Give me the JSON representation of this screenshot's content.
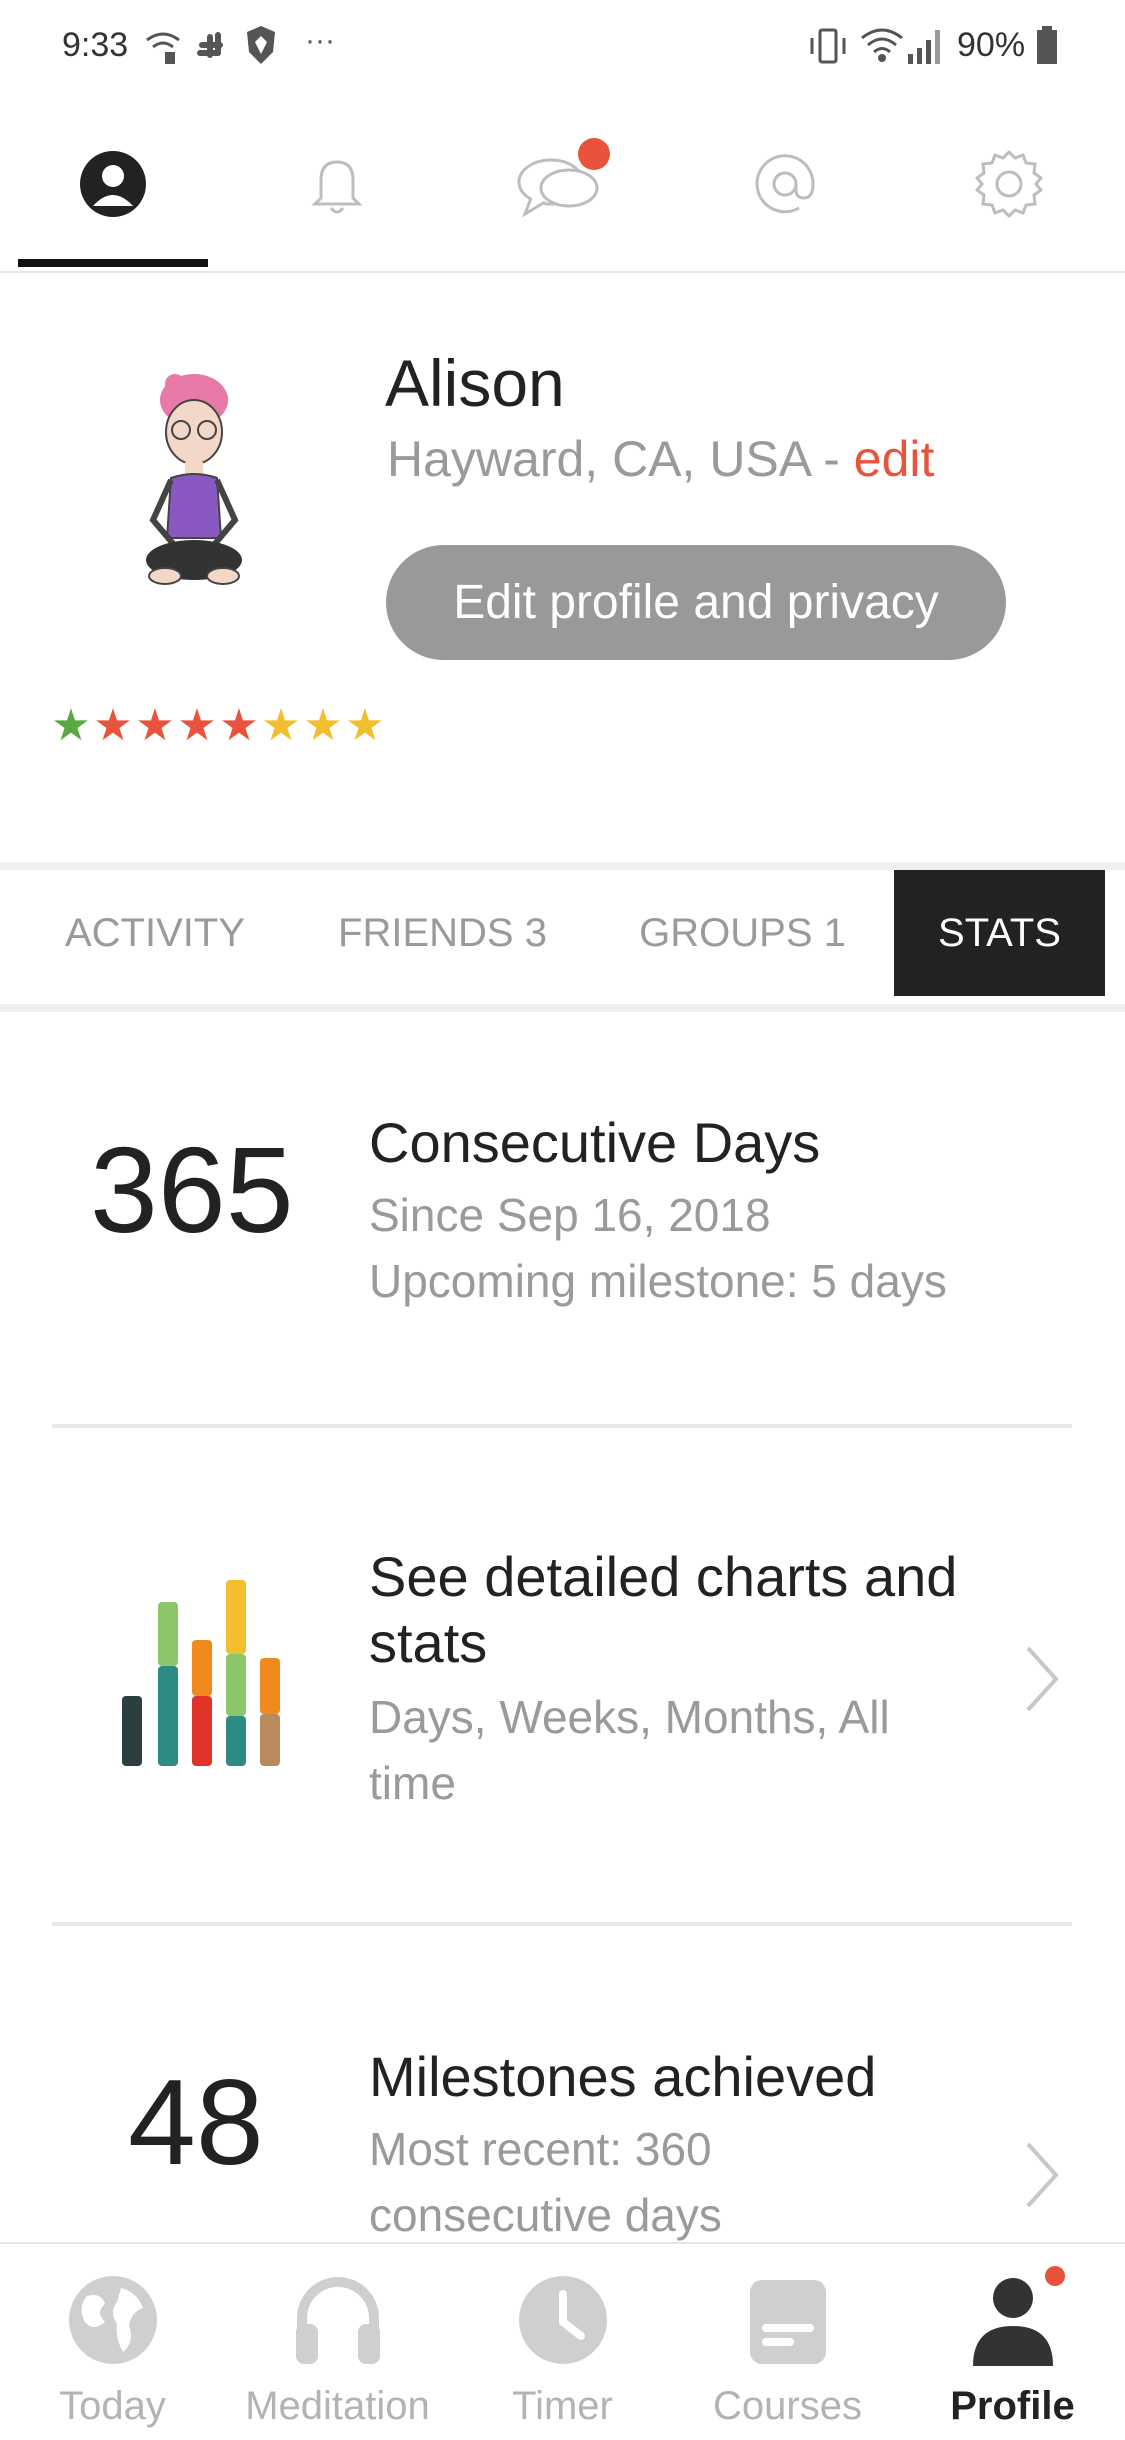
{
  "status_bar": {
    "time": "9:33",
    "battery": "90%",
    "icons": [
      "wifi-call-icon",
      "slack-icon",
      "brave-icon",
      "more-icon",
      "vibrate-icon",
      "wifi-icon",
      "signal-icon",
      "battery-icon"
    ]
  },
  "top_tabs": [
    "profile-icon",
    "bell-icon",
    "chat-icon",
    "at-icon",
    "gear-icon"
  ],
  "profile": {
    "name": "Alison",
    "location": "Hayward, CA, USA - ",
    "edit_link": "edit",
    "edit_button": "Edit profile and privacy",
    "stars": 8
  },
  "subtabs": {
    "activity": "ACTIVITY",
    "friends": "FRIENDS 3",
    "groups": "GROUPS 1",
    "stats": "STATS"
  },
  "stats": {
    "consecutive": {
      "number": "365",
      "title": "Consecutive Days",
      "since": "Since Sep 16, 2018",
      "upcoming": "Upcoming milestone: 5 days"
    },
    "charts": {
      "title_line1": "See detailed charts and",
      "title_line2": "stats",
      "sub_line1": "Days, Weeks, Months, All",
      "sub_line2": "time"
    },
    "milestones": {
      "number": "48",
      "title": "Milestones achieved",
      "sub_line1": "Most recent: 360",
      "sub_line2": "consecutive days"
    }
  },
  "bottom_nav": {
    "today": "Today",
    "meditation": "Meditation",
    "timer": "Timer",
    "courses": "Courses",
    "profile": "Profile"
  },
  "colors": {
    "accent": "#e9533c",
    "active_tab": "#222222",
    "muted": "#9a9a9a"
  }
}
